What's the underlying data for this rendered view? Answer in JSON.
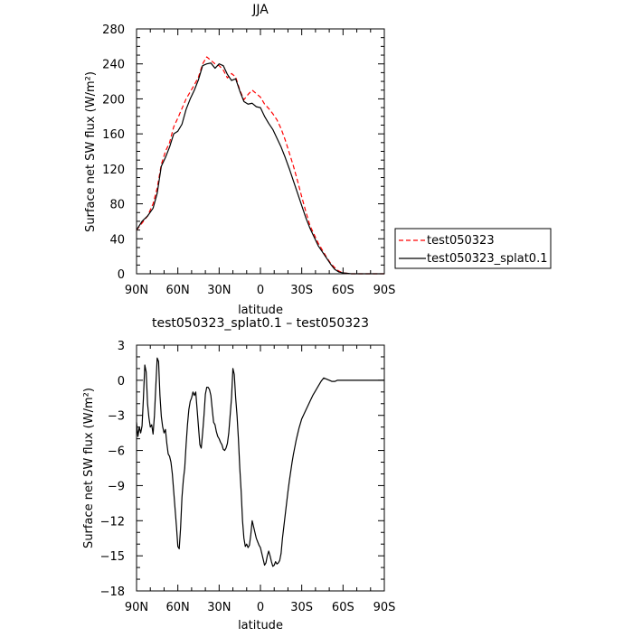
{
  "chart_data": [
    {
      "type": "line",
      "title": "JJA",
      "xlabel": "latitude",
      "ylabel": "Surface net SW flux (W/m²)",
      "ylim": [
        0,
        280
      ],
      "xlim": [
        90,
        -90
      ],
      "x_tick_values": [
        90,
        60,
        30,
        0,
        -30,
        -60,
        -90
      ],
      "x_tick_labels": [
        "90N",
        "60N",
        "30N",
        "0",
        "30S",
        "60S",
        "90S"
      ],
      "y_tick_values": [
        0,
        40,
        80,
        120,
        160,
        200,
        240,
        280
      ],
      "y_tick_labels": [
        "0",
        "40",
        "80",
        "120",
        "160",
        "200",
        "240",
        "280"
      ],
      "legend_position": "right",
      "series": [
        {
          "name": "test050323",
          "color": "#ff0000",
          "dash": "dashed",
          "x": [
            90,
            86,
            82,
            78,
            75,
            72,
            69,
            66,
            63,
            60,
            57,
            54,
            51,
            48,
            45,
            42,
            39,
            36,
            33,
            30,
            27,
            24,
            21,
            18,
            15,
            12,
            9,
            6,
            3,
            0,
            -3,
            -6,
            -9,
            -12,
            -15,
            -18,
            -21,
            -24,
            -27,
            -30,
            -33,
            -36,
            -39,
            -42,
            -45,
            -48,
            -51,
            -54,
            -57,
            -60,
            -63,
            -66,
            -69,
            -72,
            -75,
            -80,
            -90
          ],
          "y": [
            50,
            58,
            66,
            80,
            98,
            125,
            140,
            150,
            168,
            178,
            189,
            200,
            208,
            216,
            225,
            240,
            248,
            244,
            240,
            238,
            233,
            224,
            229,
            225,
            210,
            199,
            205,
            210,
            206,
            202,
            194,
            189,
            183,
            176,
            166,
            153,
            138,
            123,
            106,
            88,
            71,
            55,
            45,
            35,
            27,
            19,
            12,
            7,
            3,
            1,
            0.5,
            0,
            0,
            0,
            0,
            0,
            0
          ]
        },
        {
          "name": "test050323_splat0.1",
          "color": "#000000",
          "dash": "solid",
          "x": [
            90,
            86,
            82,
            78,
            75,
            72,
            69,
            66,
            63,
            60,
            57,
            54,
            51,
            48,
            45,
            42,
            39,
            36,
            33,
            30,
            27,
            24,
            21,
            18,
            15,
            12,
            9,
            6,
            3,
            0,
            -3,
            -6,
            -9,
            -12,
            -15,
            -18,
            -21,
            -24,
            -27,
            -30,
            -33,
            -36,
            -39,
            -42,
            -45,
            -48,
            -51,
            -54,
            -57,
            -60,
            -63,
            -66,
            -69,
            -72,
            -75,
            -80,
            -90
          ],
          "y": [
            50,
            60,
            66,
            75,
            92,
            123,
            133,
            145,
            160,
            163,
            171,
            188,
            200,
            210,
            222,
            238,
            240,
            241,
            235,
            240,
            238,
            228,
            221,
            223,
            209,
            197,
            194,
            195,
            191,
            190,
            180,
            172,
            165,
            155,
            145,
            133,
            120,
            106,
            92,
            78,
            64,
            52,
            42,
            32,
            25,
            18,
            11,
            5,
            2,
            1,
            0.5,
            0,
            0,
            0,
            0,
            0,
            0
          ]
        }
      ]
    },
    {
      "type": "line",
      "title": "test050323_splat0.1 – test050323",
      "xlabel": "latitude",
      "ylabel": "Surface net SW flux (W/m²)",
      "ylim": [
        -18,
        3
      ],
      "xlim": [
        90,
        -90
      ],
      "x_tick_values": [
        90,
        60,
        30,
        0,
        -30,
        -60,
        -90
      ],
      "x_tick_labels": [
        "90N",
        "60N",
        "30N",
        "0",
        "30S",
        "60S",
        "90S"
      ],
      "y_tick_values": [
        3,
        0,
        -3,
        -6,
        -9,
        -12,
        -15,
        -18
      ],
      "y_tick_labels": [
        "3",
        "0",
        "−3",
        "−6",
        "−9",
        "−12",
        "−15",
        "−18"
      ],
      "series": [
        {
          "color": "#000000",
          "dash": "solid",
          "x": [
            90,
            89,
            88,
            87,
            86,
            85,
            84,
            83,
            82,
            81,
            80,
            79,
            78,
            77,
            76,
            75,
            74,
            73,
            72,
            71,
            70,
            69,
            68,
            67,
            66,
            65,
            64,
            63,
            62,
            61,
            60,
            59,
            58,
            57,
            56,
            55,
            54,
            53,
            52,
            51,
            50,
            49,
            48,
            47,
            46,
            45,
            44,
            43,
            42,
            41,
            40,
            39,
            38,
            37,
            36,
            35,
            34,
            33,
            32,
            31,
            30,
            29,
            28,
            27,
            26,
            25,
            24,
            23,
            22,
            21,
            20,
            19,
            18,
            17,
            16,
            15,
            14,
            13,
            12,
            11,
            10,
            9,
            8,
            7,
            6,
            5,
            4,
            3,
            2,
            1,
            0,
            -1,
            -2,
            -3,
            -4,
            -5,
            -6,
            -7,
            -8,
            -9,
            -10,
            -11,
            -12,
            -13,
            -14,
            -15,
            -16,
            -17,
            -18,
            -19,
            -20,
            -21,
            -22,
            -23,
            -24,
            -25,
            -26,
            -27,
            -28,
            -29,
            -30,
            -32,
            -34,
            -36,
            -38,
            -40,
            -42,
            -44,
            -46,
            -48,
            -50,
            -52,
            -54,
            -56,
            -58,
            -60,
            -62,
            -64,
            -66,
            -68,
            -70,
            -75,
            -80,
            -90
          ],
          "y": [
            -3.6,
            -4.8,
            -4.0,
            -4.5,
            -3.9,
            -1.5,
            1.3,
            0.7,
            -2.0,
            -3.2,
            -4.0,
            -3.8,
            -4.6,
            -3.0,
            -0.5,
            1.9,
            1.6,
            -1.3,
            -3.1,
            -4.0,
            -4.5,
            -4.2,
            -5.4,
            -6.3,
            -6.5,
            -7.0,
            -8.0,
            -9.5,
            -11.0,
            -12.5,
            -14.2,
            -14.4,
            -12.6,
            -10.0,
            -8.5,
            -7.5,
            -5.5,
            -3.8,
            -2.5,
            -1.8,
            -1.5,
            -1.0,
            -1.3,
            -1.0,
            -2.5,
            -4.0,
            -5.5,
            -5.8,
            -4.5,
            -3.0,
            -1.2,
            -0.6,
            -0.6,
            -0.8,
            -1.3,
            -2.5,
            -3.6,
            -3.8,
            -4.4,
            -4.8,
            -5.0,
            -5.3,
            -5.5,
            -5.9,
            -6.0,
            -5.8,
            -5.4,
            -4.5,
            -3.0,
            -1.5,
            1.0,
            0.5,
            -1.5,
            -3.0,
            -5.0,
            -7.5,
            -9.5,
            -12.0,
            -13.5,
            -14.2,
            -14.0,
            -14.3,
            -14.1,
            -13.2,
            -12.0,
            -12.5,
            -13.0,
            -13.5,
            -13.8,
            -14.1,
            -14.3,
            -14.8,
            -15.3,
            -15.8,
            -15.6,
            -15.0,
            -14.6,
            -15.0,
            -15.5,
            -15.9,
            -15.8,
            -15.5,
            -15.7,
            -15.6,
            -15.4,
            -14.8,
            -13.5,
            -12.5,
            -11.5,
            -10.5,
            -9.5,
            -8.6,
            -7.8,
            -7.0,
            -6.3,
            -5.7,
            -5.1,
            -4.6,
            -4.1,
            -3.7,
            -3.3,
            -2.8,
            -2.3,
            -1.8,
            -1.3,
            -0.9,
            -0.5,
            -0.1,
            0.2,
            0.1,
            0.0,
            -0.1,
            -0.1,
            0,
            0,
            0,
            0,
            0,
            0,
            0,
            0,
            0,
            0,
            0
          ]
        }
      ]
    }
  ]
}
